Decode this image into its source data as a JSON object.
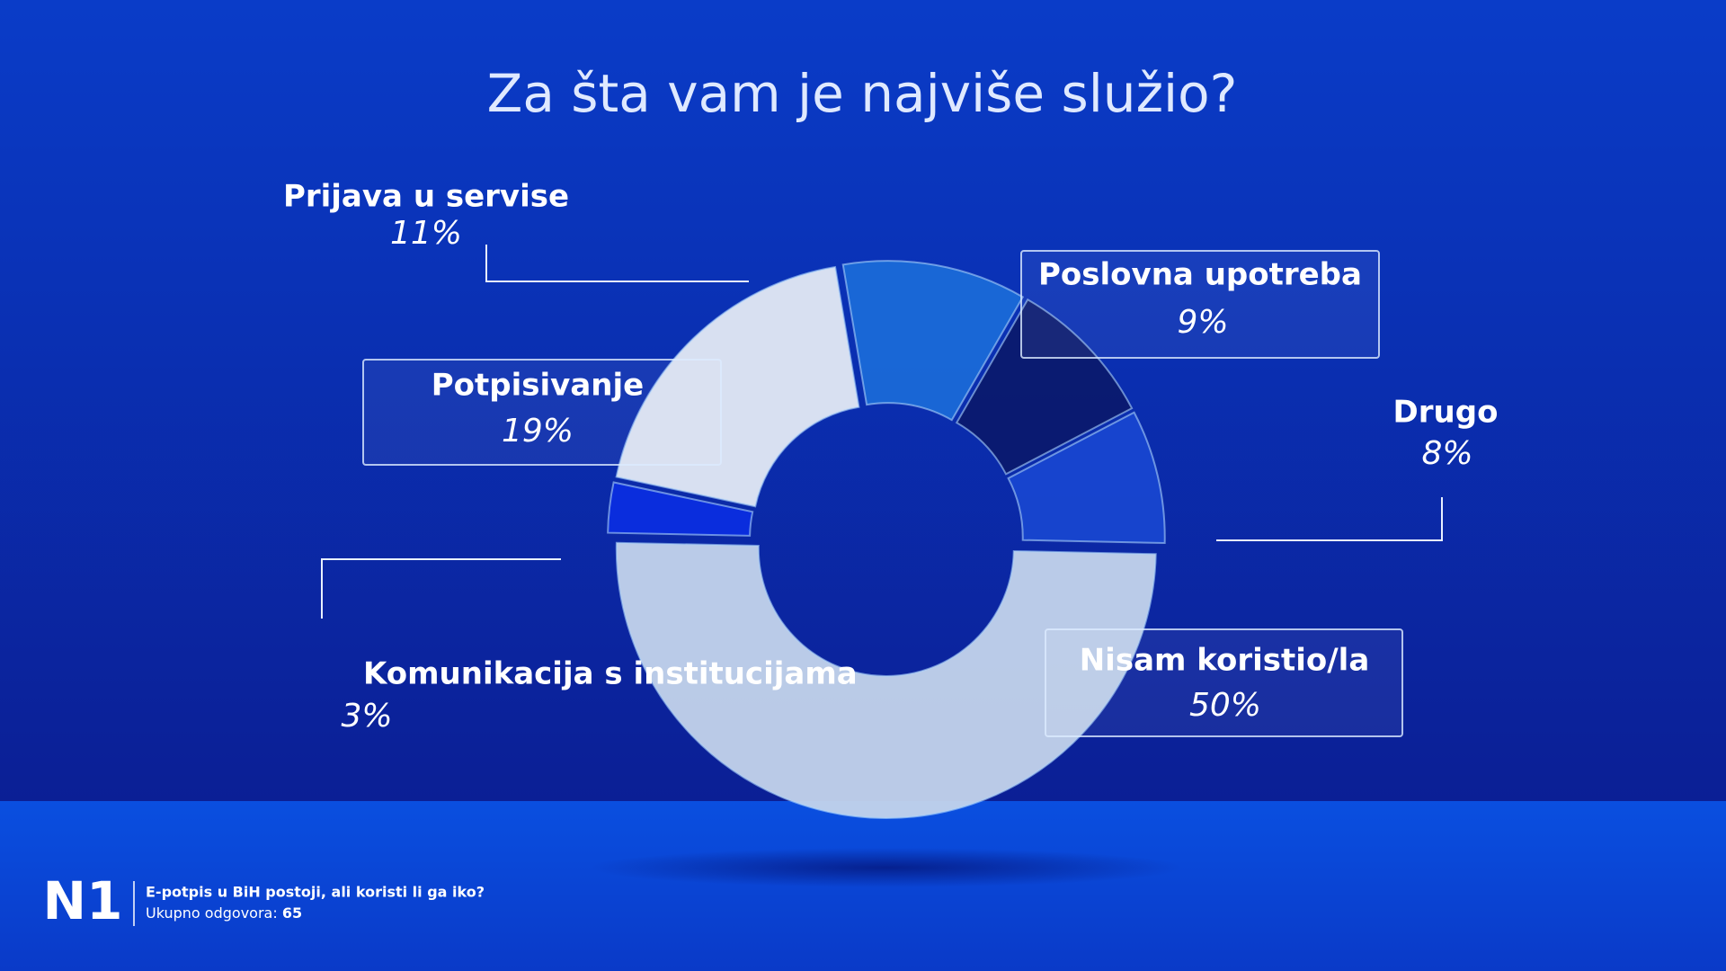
{
  "chart_data": {
    "type": "pie",
    "title": "Za šta vam je najviše služio?",
    "categories": [
      "Poslovna upotreba",
      "Drugo",
      "Nisam koristio/la",
      "Komunikacija s institucijama",
      "Potpisivanje",
      "Prijava u servise"
    ],
    "values": [
      9,
      8,
      50,
      3,
      19,
      11
    ],
    "value_labels": [
      "9%",
      "8%",
      "50%",
      "3%",
      "19%",
      "11%"
    ],
    "colors": [
      "#0a1a6e",
      "#1846d0",
      "#c4d4ec",
      "#0a2ee0",
      "#e4eaf5",
      "#1a6ad8"
    ]
  },
  "brand": "N1",
  "footer": {
    "headline": "E-potpis u BiH postoji, ali koristi li ga iko?",
    "count_label": "Ukupno odgovora:",
    "count": 65
  }
}
